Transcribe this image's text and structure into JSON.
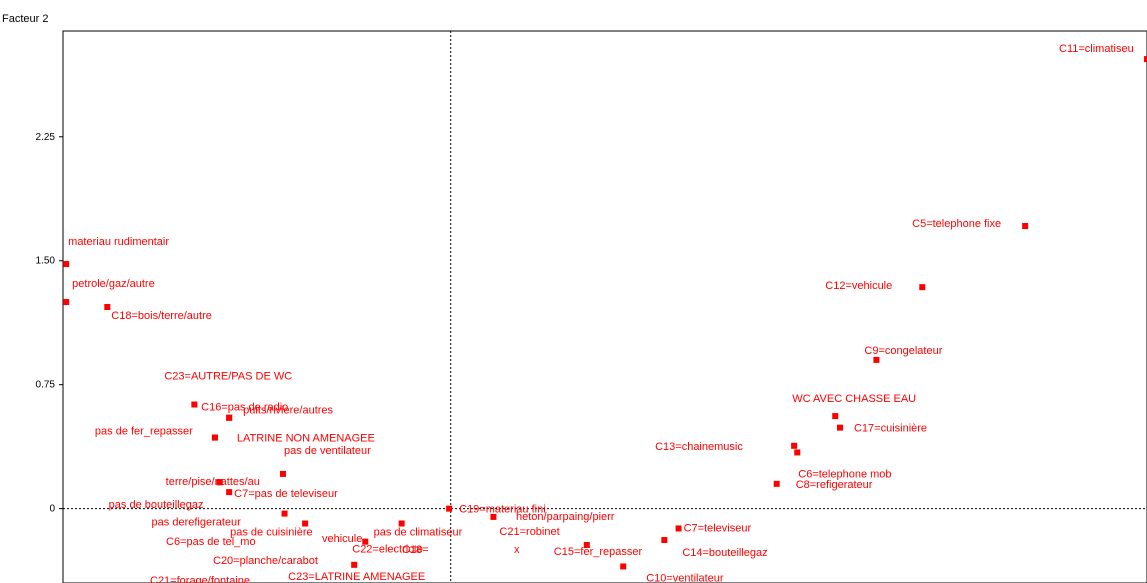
{
  "chart_data": {
    "type": "scatter",
    "title": "",
    "ylabel": "Facteur 2",
    "xlabel": "",
    "xlim": [
      -2.45,
      4.4
    ],
    "ylim": [
      -0.45,
      2.89
    ],
    "yticks": [
      {
        "value": 0,
        "label": "0"
      },
      {
        "value": 0.75,
        "label": "0.75"
      },
      {
        "value": 1.5,
        "label": "1.50"
      },
      {
        "value": 2.25,
        "label": "2.25"
      }
    ],
    "marker_color": "#ff0000",
    "points": [
      {
        "x": 4.4,
        "y": 2.72,
        "label": "C11=climatiseu"
      },
      {
        "x": 3.63,
        "y": 1.71,
        "label": "C5=telephone fixe"
      },
      {
        "x": 2.98,
        "y": 1.34,
        "label": "C12=vehicule"
      },
      {
        "x": 2.69,
        "y": 0.9,
        "label": "C9=congelateur"
      },
      {
        "x": 2.43,
        "y": 0.56,
        "label": "WC AVEC CHASSE EAU"
      },
      {
        "x": 2.46,
        "y": 0.49,
        "label": "C17=cuisinière"
      },
      {
        "x": 2.17,
        "y": 0.38,
        "label": "C13=chainemusic"
      },
      {
        "x": 2.19,
        "y": 0.34,
        "label": "C6=telephone mob"
      },
      {
        "x": 2.06,
        "y": 0.15,
        "label": "C8=refigerateur"
      },
      {
        "x": -2.43,
        "y": 1.48,
        "label": "materiau rudimentair"
      },
      {
        "x": -2.43,
        "y": 1.25,
        "label": "petrole/gaz/autre"
      },
      {
        "x": -2.17,
        "y": 1.22,
        "label": "C18=bois/terre/autre"
      },
      {
        "x": -1.62,
        "y": 0.63,
        "label": "C23=AUTRE/PAS DE WC"
      },
      {
        "x": -1.4,
        "y": 0.55,
        "label": "C16=pas de radio"
      },
      {
        "x": -1.4,
        "y": 0.55,
        "label": "puits/riviere/autres"
      },
      {
        "x": -1.49,
        "y": 0.43,
        "label": "pas de fer_repasser"
      },
      {
        "x": -1.49,
        "y": 0.43,
        "label": "LATRINE NON AMENAGEE"
      },
      {
        "x": -1.46,
        "y": 0.16,
        "label": "terre/pise/nattes/au"
      },
      {
        "x": -1.46,
        "y": 0.16,
        "label": "pas de bouteillegaz"
      },
      {
        "x": -1.06,
        "y": 0.21,
        "label": "pas de ventilateur"
      },
      {
        "x": -1.4,
        "y": 0.1,
        "label": "C7=pas de televiseur"
      },
      {
        "x": -1.05,
        "y": -0.03,
        "label": "pas derefigerateur"
      },
      {
        "x": -0.01,
        "y": 0.0,
        "label": "C19=materiau fini"
      },
      {
        "x": 0.27,
        "y": -0.05,
        "label": "C21=robinet"
      },
      {
        "x": 1.44,
        "y": -0.12,
        "label": "C7=televiseur"
      },
      {
        "x": 1.35,
        "y": -0.19,
        "label": "C14=bouteillegaz"
      },
      {
        "x": 0.86,
        "y": -0.22,
        "label": "C15=fer_repasser"
      },
      {
        "x": 1.09,
        "y": -0.35,
        "label": "C10=ventilateur"
      },
      {
        "x": -0.92,
        "y": -0.09,
        "label": "pas de cuisinière"
      },
      {
        "x": -0.31,
        "y": -0.09,
        "label": "pas de climatiseur"
      },
      {
        "x": -0.54,
        "y": -0.2,
        "label": "C22=electricte"
      },
      {
        "x": -0.61,
        "y": -0.34,
        "label": "C23=LATRINE AMENAGEE"
      }
    ],
    "static_labels": [
      {
        "label": "heton/parpaing/pierr"
      },
      {
        "label": "C6=pas de tel_mo"
      },
      {
        "label": "vehicule"
      },
      {
        "label": "C18="
      },
      {
        "label": "C20=planche/carabot"
      },
      {
        "label": "C21=forage/fontaine"
      },
      {
        "label": "x"
      }
    ]
  }
}
